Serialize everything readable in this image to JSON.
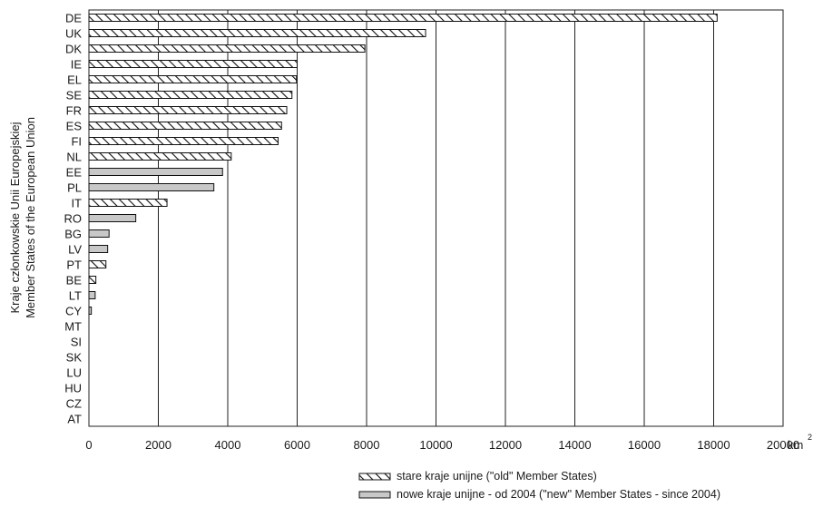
{
  "chart_data": {
    "type": "bar",
    "orientation": "horizontal",
    "ylabel_lines": [
      "Kraje członkowskie Unii Europejskiej",
      "Member States of the European Union"
    ],
    "xlabel": "",
    "x_unit": "km",
    "x_unit_sup": "2",
    "xlim": [
      0,
      20000
    ],
    "xticks": [
      0,
      2000,
      4000,
      6000,
      8000,
      10000,
      12000,
      14000,
      16000,
      18000,
      20000
    ],
    "grid": "vertical",
    "legend_position": "bottom-right",
    "series": [
      {
        "key": "old",
        "name": "stare kraje unijne  (\"old\" Member States)",
        "pattern": "hatch"
      },
      {
        "key": "new",
        "name": "nowe kraje unijne - od 2004  (\"new\" Member States - since 2004)",
        "pattern": "solid",
        "color": "#c8c8c8"
      }
    ],
    "bars": [
      {
        "label": "DE",
        "value": 18100,
        "group": "old"
      },
      {
        "label": "UK",
        "value": 9700,
        "group": "old"
      },
      {
        "label": "DK",
        "value": 7950,
        "group": "old"
      },
      {
        "label": "IE",
        "value": 6000,
        "group": "old"
      },
      {
        "label": "EL",
        "value": 5980,
        "group": "old"
      },
      {
        "label": "SE",
        "value": 5850,
        "group": "old"
      },
      {
        "label": "FR",
        "value": 5700,
        "group": "old"
      },
      {
        "label": "ES",
        "value": 5550,
        "group": "old"
      },
      {
        "label": "FI",
        "value": 5450,
        "group": "old"
      },
      {
        "label": "NL",
        "value": 4100,
        "group": "old"
      },
      {
        "label": "EE",
        "value": 3850,
        "group": "new"
      },
      {
        "label": "PL",
        "value": 3600,
        "group": "new"
      },
      {
        "label": "IT",
        "value": 2250,
        "group": "old"
      },
      {
        "label": "RO",
        "value": 1350,
        "group": "new"
      },
      {
        "label": "BG",
        "value": 580,
        "group": "new"
      },
      {
        "label": "LV",
        "value": 540,
        "group": "new"
      },
      {
        "label": "PT",
        "value": 490,
        "group": "old"
      },
      {
        "label": "BE",
        "value": 200,
        "group": "old"
      },
      {
        "label": "LT",
        "value": 180,
        "group": "new"
      },
      {
        "label": "CY",
        "value": 70,
        "group": "new"
      },
      {
        "label": "MT",
        "value": 0,
        "group": "new"
      },
      {
        "label": "SI",
        "value": 0,
        "group": "new"
      },
      {
        "label": "SK",
        "value": 0,
        "group": "new"
      },
      {
        "label": "LU",
        "value": 0,
        "group": "old"
      },
      {
        "label": "HU",
        "value": 0,
        "group": "new"
      },
      {
        "label": "CZ",
        "value": 0,
        "group": "new"
      },
      {
        "label": "AT",
        "value": 0,
        "group": "old"
      }
    ]
  }
}
